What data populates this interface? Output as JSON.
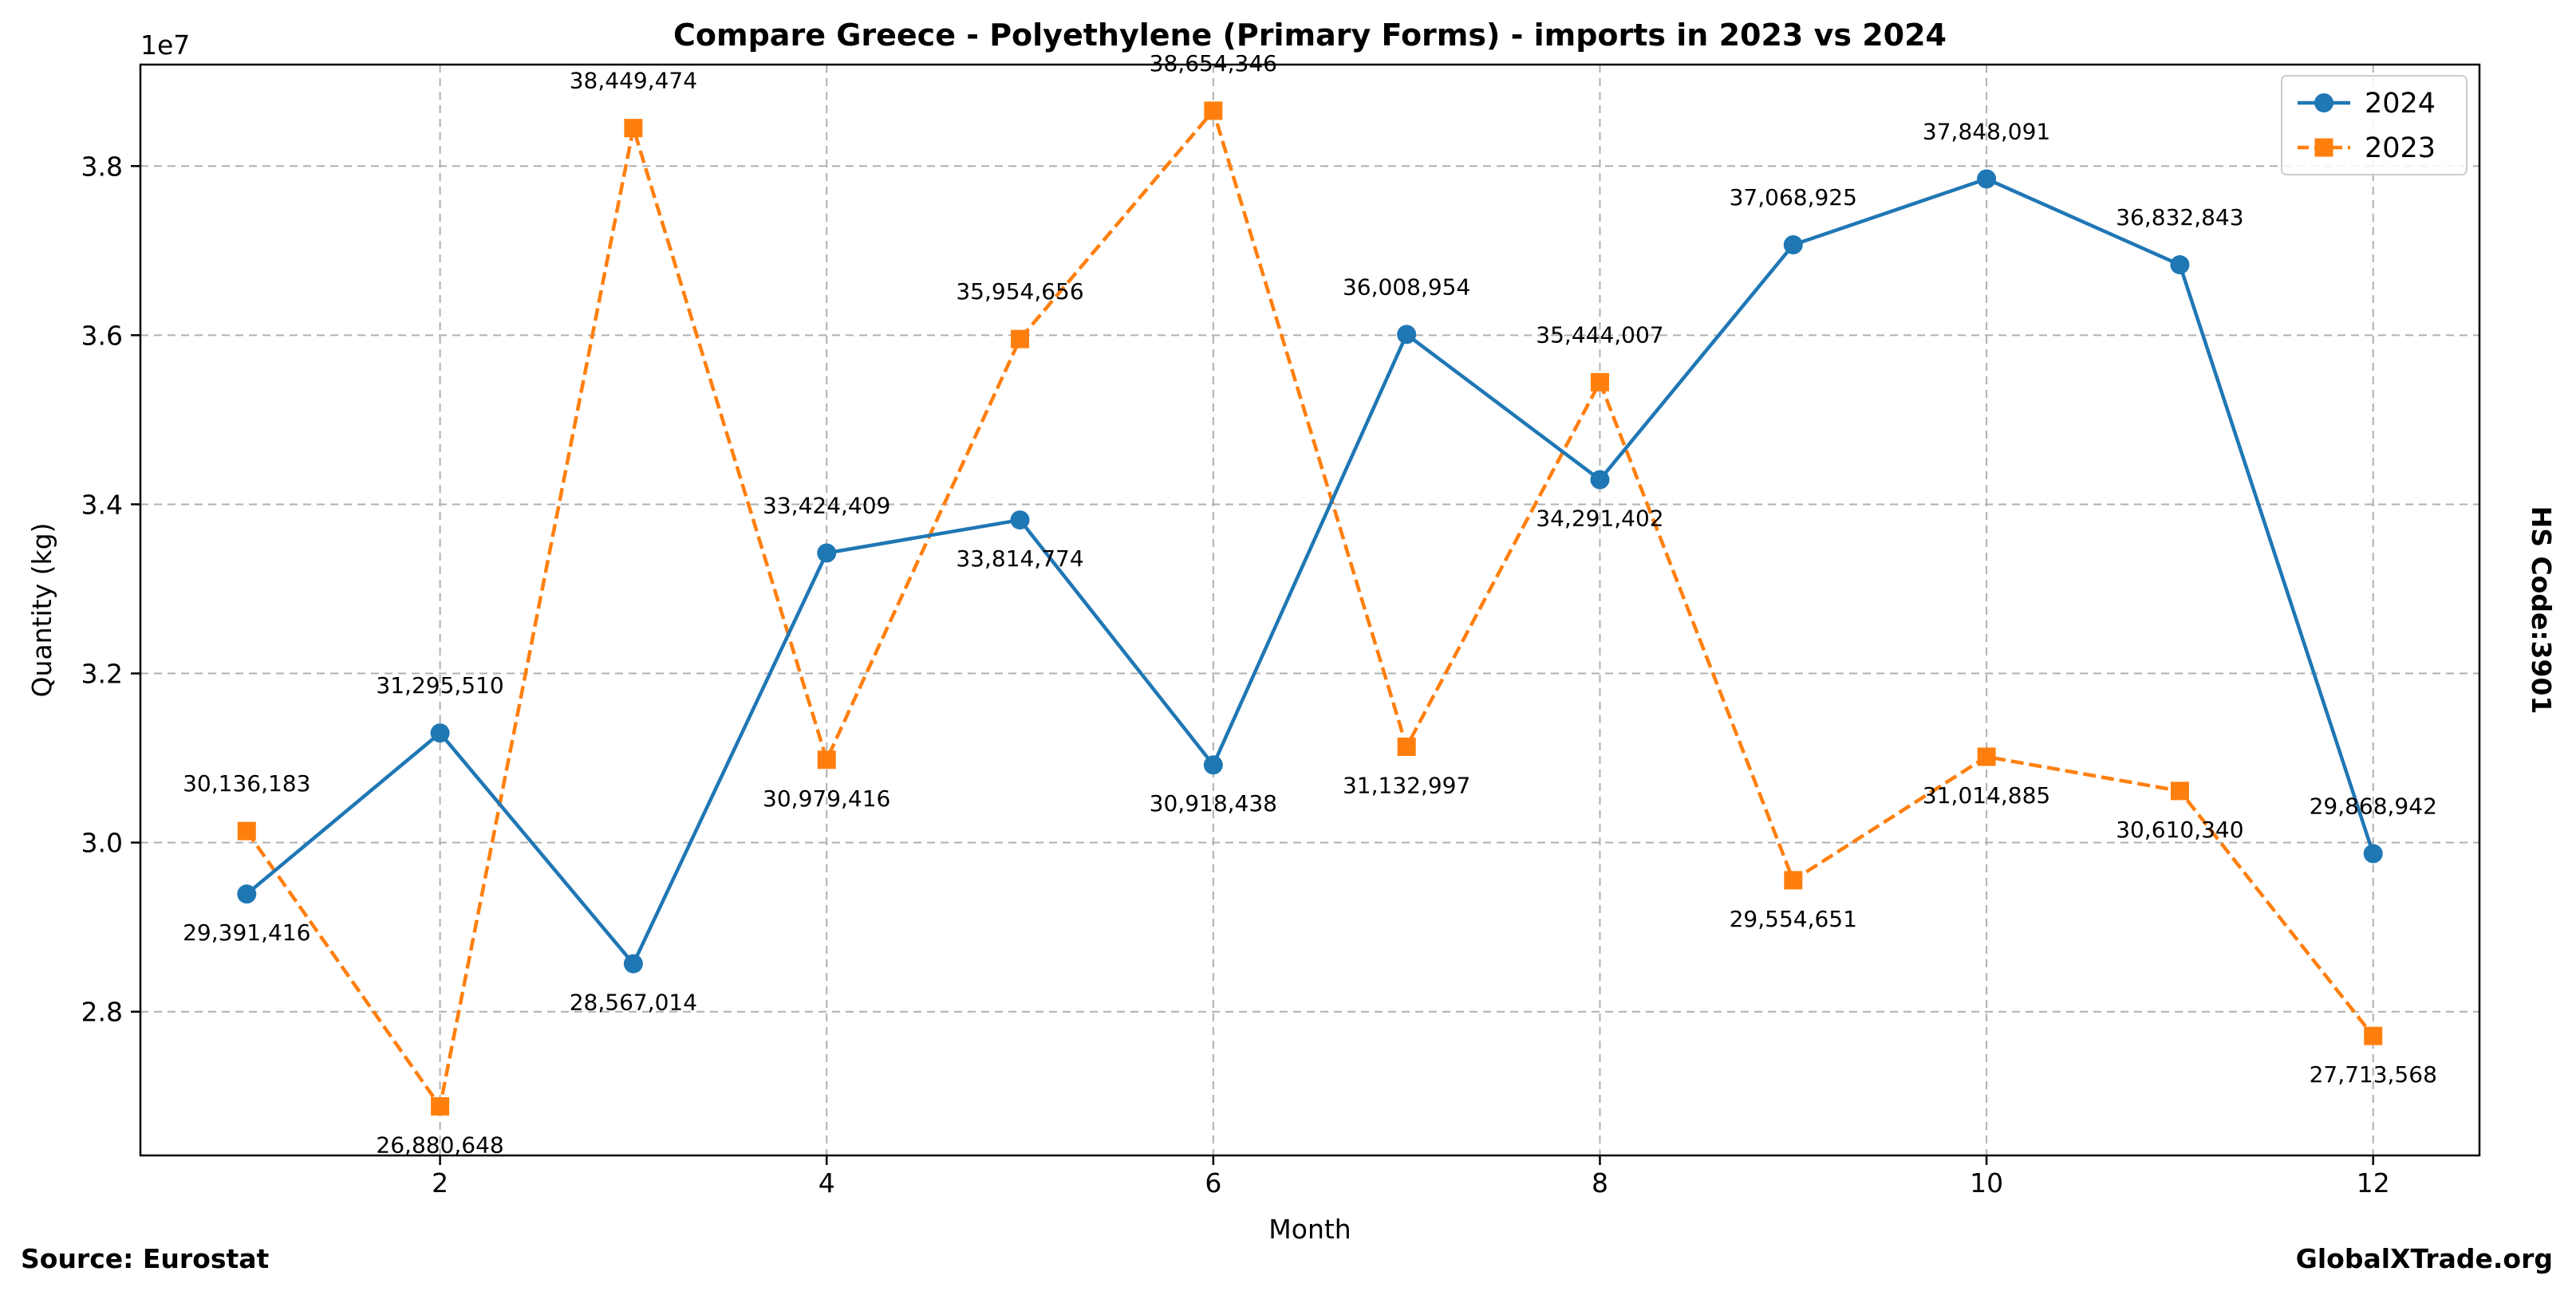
{
  "chart_data": {
    "type": "line",
    "title": "Compare Greece - Polyethylene (Primary Forms) - imports in 2023 vs 2024",
    "xlabel": "Month",
    "ylabel": "Quantity (kg)",
    "y_scale_label": "1e7",
    "x": [
      1,
      2,
      3,
      4,
      5,
      6,
      7,
      8,
      9,
      10,
      11,
      12
    ],
    "xlim": [
      0.45,
      12.55
    ],
    "ylim": [
      26300000,
      39200000
    ],
    "x_ticks": [
      2,
      4,
      6,
      8,
      10,
      12
    ],
    "y_ticks": [
      28000000,
      30000000,
      32000000,
      34000000,
      36000000,
      38000000
    ],
    "y_tick_labels": [
      "2.8",
      "3.0",
      "3.2",
      "3.4",
      "3.6",
      "3.8"
    ],
    "grid": true,
    "legend_position": "top-right",
    "series": [
      {
        "name": "2024",
        "color": "#1f77b4",
        "marker": "circle",
        "line_style": "solid",
        "values": [
          29391416,
          31295510,
          28567014,
          33424409,
          33814774,
          30918438,
          36008954,
          34291402,
          37068925,
          37848091,
          36832843,
          29868942
        ],
        "labels": [
          "29,391,416",
          "31,295,510",
          "28,567,014",
          "33,424,409",
          "33,814,774",
          "30,918,438",
          "36,008,954",
          "34,291,402",
          "37,068,925",
          "37,848,091",
          "36,832,843",
          "29,868,942"
        ]
      },
      {
        "name": "2023",
        "color": "#ff7f0e",
        "marker": "square",
        "line_style": "dashed",
        "values": [
          30136183,
          26880648,
          38449474,
          30979416,
          35954656,
          38654346,
          31132997,
          35444007,
          29554651,
          31014885,
          30610340,
          27713568
        ],
        "labels": [
          "30,136,183",
          "26,880,648",
          "38,449,474",
          "30,979,416",
          "35,954,656",
          "38,654,346",
          "31,132,997",
          "35,444,007",
          "29,554,651",
          "31,014,885",
          "30,610,340",
          "27,713,568"
        ]
      }
    ]
  },
  "footer": {
    "source": "Source: Eurostat",
    "brand": "GlobalXTrade.org",
    "hs_code": "HS Code:3901"
  }
}
